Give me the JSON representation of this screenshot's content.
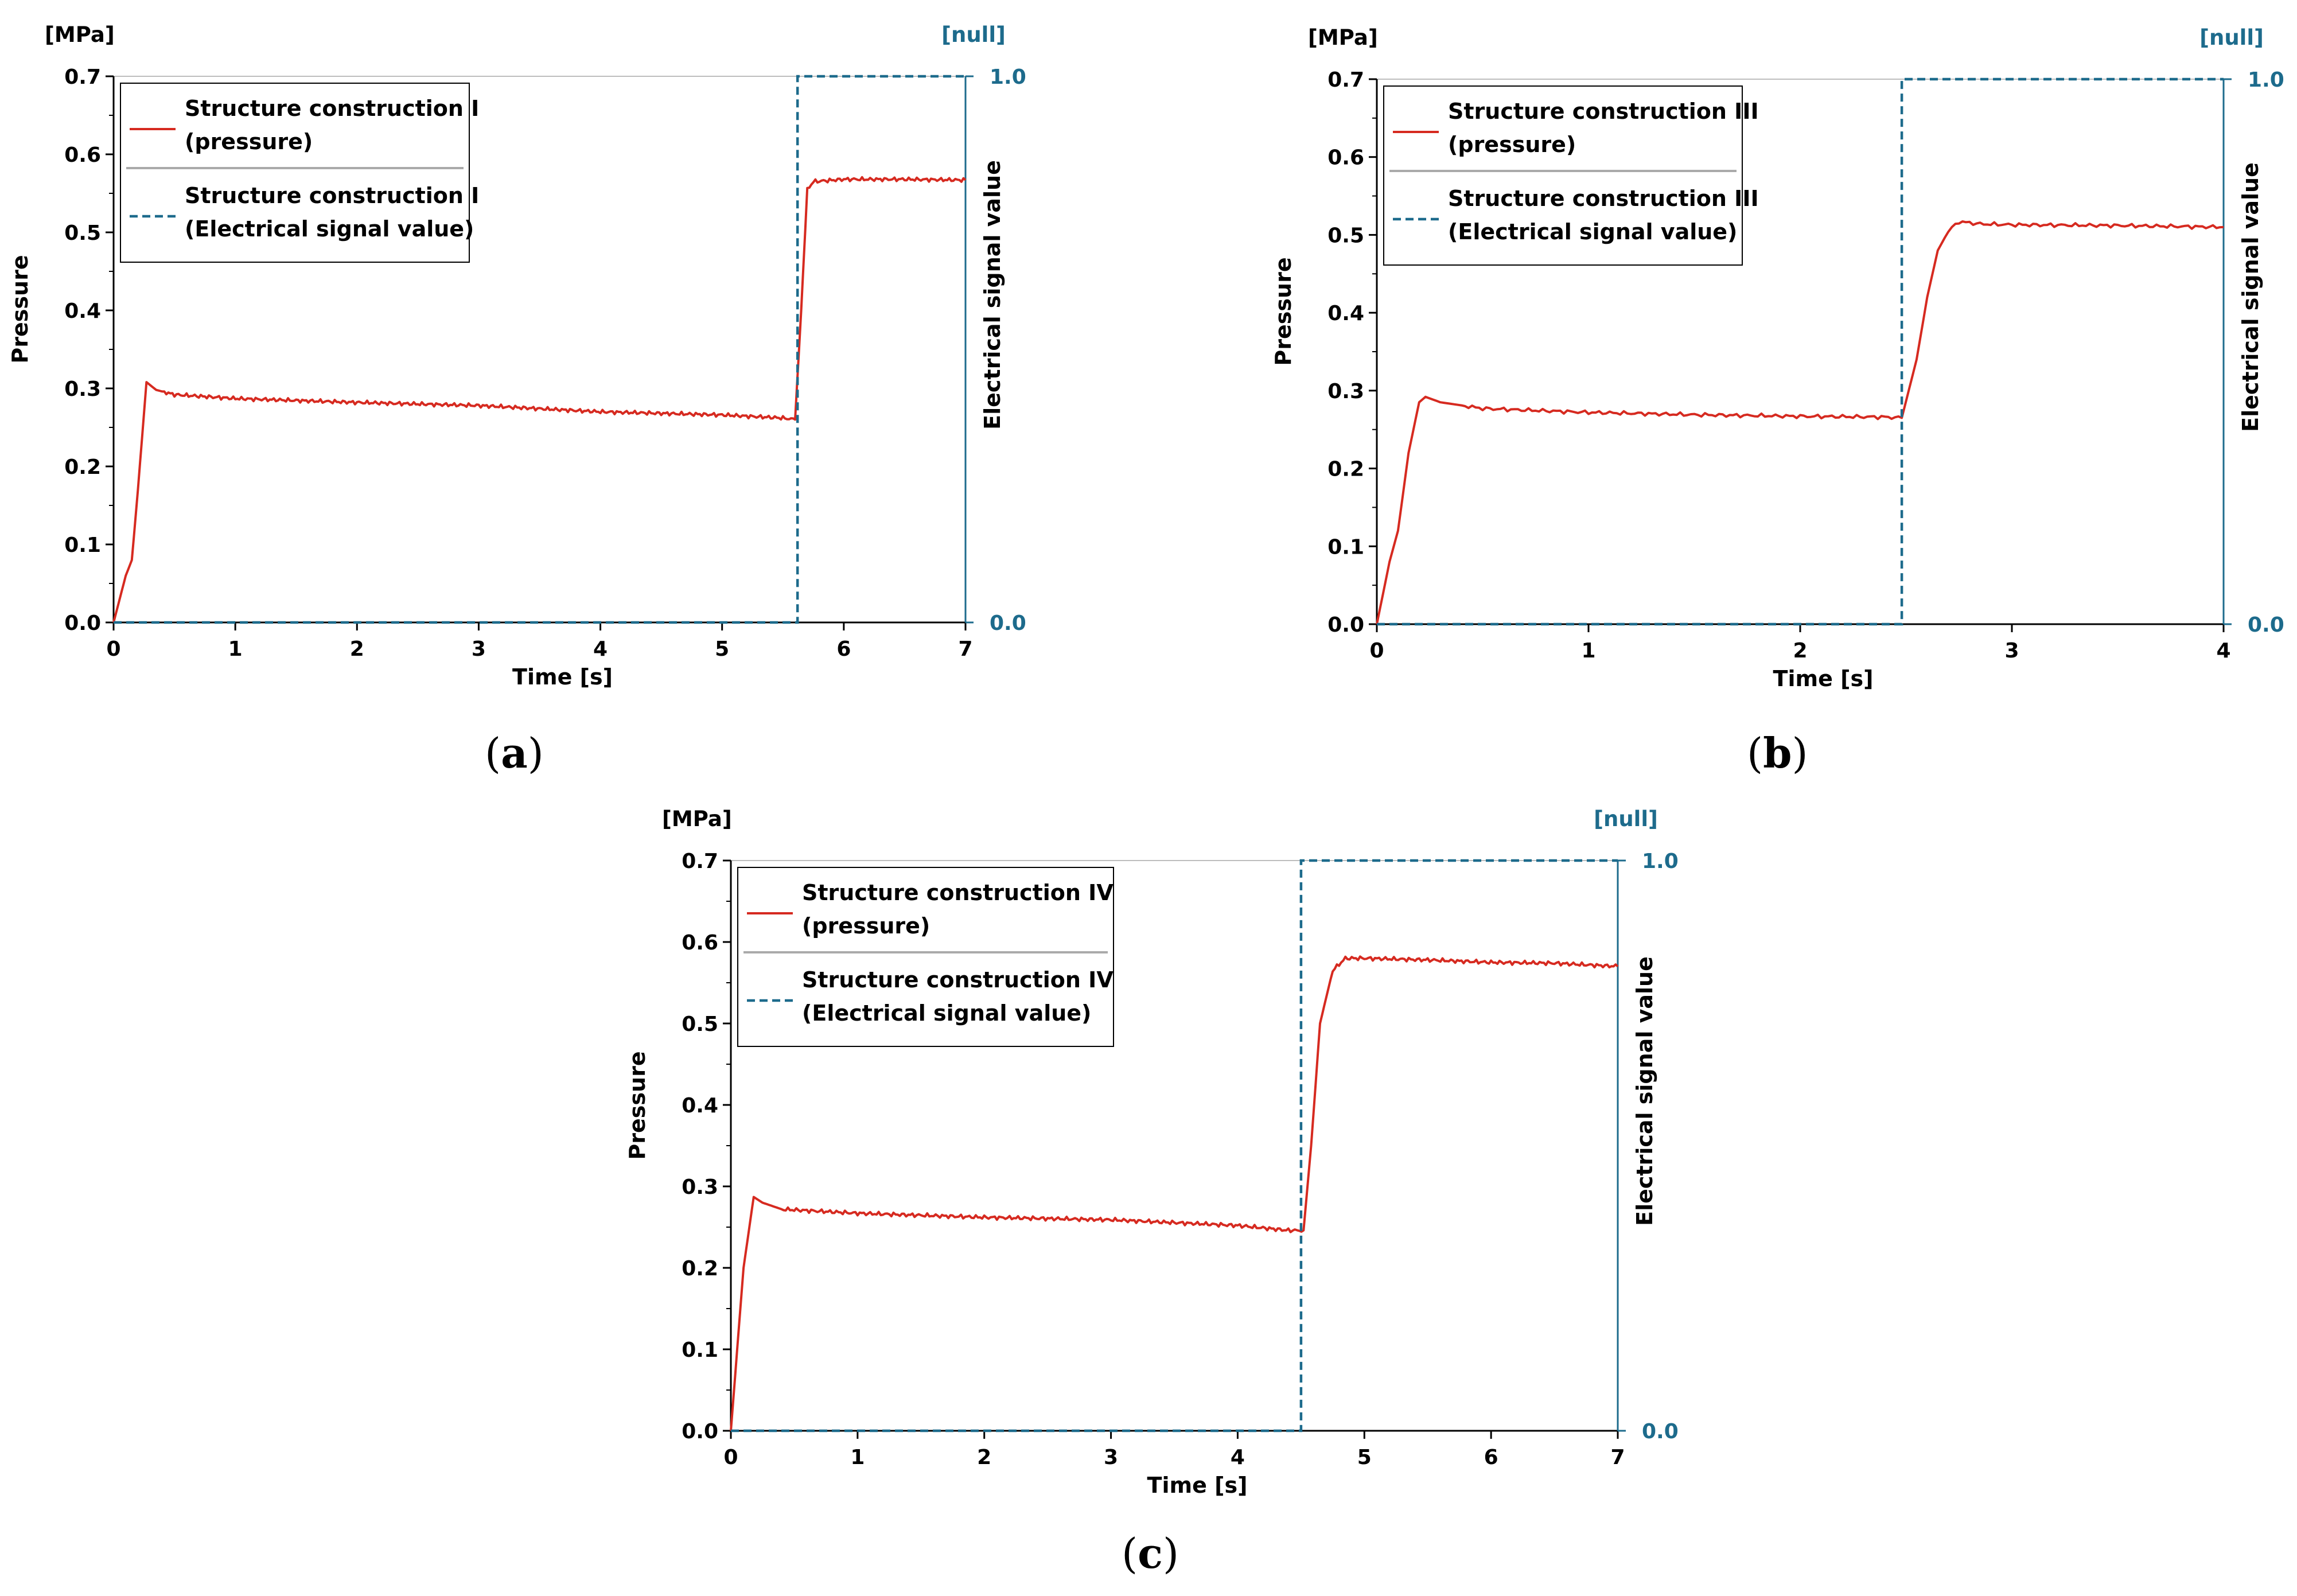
{
  "chart_data": [
    {
      "id": "a",
      "type": "line",
      "sublabel_open": "(",
      "sublabel": "a",
      "sublabel_close": ")",
      "xlabel": "Time [s]",
      "ylabel": "Pressure",
      "y2label": "Electrical signal value",
      "yunit": "[MPa]",
      "y2unit": "[null]",
      "xlim": [
        0,
        7
      ],
      "ylim": [
        0,
        0.7
      ],
      "y2lim": [
        0,
        1
      ],
      "xticks": [
        "0",
        "1",
        "2",
        "3",
        "4",
        "5",
        "6",
        "7"
      ],
      "yticks": [
        "0.0",
        "0.1",
        "0.2",
        "0.3",
        "0.4",
        "0.5",
        "0.6",
        "0.7"
      ],
      "y2ticks": [
        "0.0",
        "1.0"
      ],
      "legend": [
        {
          "line1": "Structure construction I",
          "line2": "(pressure)"
        },
        {
          "line1": "Structure construction I",
          "line2": "(Electrical signal value)"
        }
      ],
      "series": [
        {
          "name": "Structure construction I (pressure)",
          "color": "#d62a20",
          "x": [
            0,
            0.05,
            0.1,
            0.15,
            0.2,
            0.27,
            0.35,
            0.5,
            1,
            2,
            3,
            4,
            5,
            5.5,
            5.6,
            5.65,
            5.7,
            5.75,
            6,
            6.5,
            7
          ],
          "y": [
            0,
            0.03,
            0.06,
            0.08,
            0.17,
            0.308,
            0.298,
            0.292,
            0.287,
            0.282,
            0.278,
            0.27,
            0.266,
            0.262,
            0.26,
            0.4,
            0.555,
            0.565,
            0.568,
            0.568,
            0.567
          ]
        },
        {
          "name": "Structure construction I (Electrical signal value)",
          "color": "#1d6b8c",
          "dashed": true,
          "axis": "right",
          "x": [
            0,
            5.62,
            5.62,
            7
          ],
          "y": [
            0,
            0,
            1,
            1
          ]
        }
      ]
    },
    {
      "id": "b",
      "type": "line",
      "sublabel_open": "(",
      "sublabel": "b",
      "sublabel_close": ")",
      "xlabel": "Time [s]",
      "ylabel": "Pressure",
      "y2label": "Electrical signal value",
      "yunit": "[MPa]",
      "y2unit": "[null]",
      "xlim": [
        0,
        4
      ],
      "ylim": [
        0,
        0.7
      ],
      "y2lim": [
        0,
        1
      ],
      "xticks": [
        "0",
        "1",
        "2",
        "3",
        "4"
      ],
      "yticks": [
        "0.0",
        "0.1",
        "0.2",
        "0.3",
        "0.4",
        "0.5",
        "0.6",
        "0.7"
      ],
      "y2ticks": [
        "0.0",
        "1.0"
      ],
      "legend": [
        {
          "line1": "Structure construction III",
          "line2": "(pressure)"
        },
        {
          "line1": "Structure construction III",
          "line2": "(Electrical signal value)"
        }
      ],
      "series": [
        {
          "name": "Structure construction III (pressure)",
          "color": "#d62a20",
          "x": [
            0,
            0.03,
            0.06,
            0.1,
            0.15,
            0.2,
            0.23,
            0.3,
            0.5,
            1,
            1.5,
            2,
            2.4,
            2.48,
            2.55,
            2.6,
            2.65,
            2.7,
            2.75,
            2.85,
            3,
            3.5,
            4
          ],
          "y": [
            0,
            0.04,
            0.08,
            0.12,
            0.22,
            0.285,
            0.292,
            0.285,
            0.277,
            0.272,
            0.269,
            0.267,
            0.266,
            0.265,
            0.34,
            0.42,
            0.48,
            0.505,
            0.517,
            0.514,
            0.513,
            0.512,
            0.51
          ]
        },
        {
          "name": "Structure construction III (Electrical signal value)",
          "color": "#1d6b8c",
          "dashed": true,
          "axis": "right",
          "x": [
            0,
            2.48,
            2.48,
            4
          ],
          "y": [
            0,
            0,
            1,
            1
          ]
        }
      ]
    },
    {
      "id": "c",
      "type": "line",
      "sublabel_open": "(",
      "sublabel": "c",
      "sublabel_close": ")",
      "xlabel": "Time [s]",
      "ylabel": "Pressure",
      "y2label": "Electrical signal value",
      "yunit": "[MPa]",
      "y2unit": "[null]",
      "xlim": [
        0,
        7
      ],
      "ylim": [
        0,
        0.7
      ],
      "y2lim": [
        0,
        1
      ],
      "xticks": [
        "0",
        "1",
        "2",
        "3",
        "4",
        "5",
        "6",
        "7"
      ],
      "yticks": [
        "0.0",
        "0.1",
        "0.2",
        "0.3",
        "0.4",
        "0.5",
        "0.6",
        "0.7"
      ],
      "y2ticks": [
        "0.0",
        "1.0"
      ],
      "legend": [
        {
          "line1": "Structure construction IV",
          "line2": "(pressure)"
        },
        {
          "line1": "Structure construction IV",
          "line2": "(Electrical signal value)"
        }
      ],
      "series": [
        {
          "name": "Structure construction IV (pressure)",
          "color": "#d62a20",
          "x": [
            0,
            0.05,
            0.1,
            0.18,
            0.25,
            0.4,
            1,
            2,
            3,
            4,
            4.4,
            4.52,
            4.58,
            4.65,
            4.75,
            4.85,
            5,
            5.5,
            6,
            6.5,
            7
          ],
          "y": [
            0,
            0.1,
            0.2,
            0.287,
            0.28,
            0.272,
            0.267,
            0.262,
            0.259,
            0.252,
            0.246,
            0.246,
            0.35,
            0.5,
            0.565,
            0.58,
            0.58,
            0.578,
            0.575,
            0.574,
            0.57
          ]
        },
        {
          "name": "Structure construction IV (Electrical signal value)",
          "color": "#1d6b8c",
          "dashed": true,
          "axis": "right",
          "x": [
            0,
            4.5,
            4.5,
            7
          ],
          "y": [
            0,
            0,
            1,
            1
          ]
        }
      ]
    }
  ]
}
